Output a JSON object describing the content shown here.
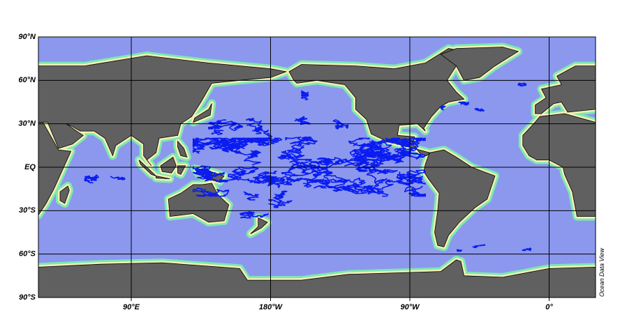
{
  "map": {
    "lat_ticks": [
      {
        "value": 90,
        "label": "90°N"
      },
      {
        "value": 60,
        "label": "60°N"
      },
      {
        "value": 30,
        "label": "30°N"
      },
      {
        "value": 0,
        "label": "EQ"
      },
      {
        "value": -30,
        "label": "30°S"
      },
      {
        "value": -60,
        "label": "60°S"
      },
      {
        "value": -90,
        "label": "90°S"
      }
    ],
    "lon_ticks": [
      {
        "value": 90,
        "label": "90°E"
      },
      {
        "value": -180,
        "label": "180°W"
      },
      {
        "value": -90,
        "label": "90°W"
      },
      {
        "value": 0,
        "label": "0°"
      }
    ],
    "credit": "Ocean Data View"
  }
}
